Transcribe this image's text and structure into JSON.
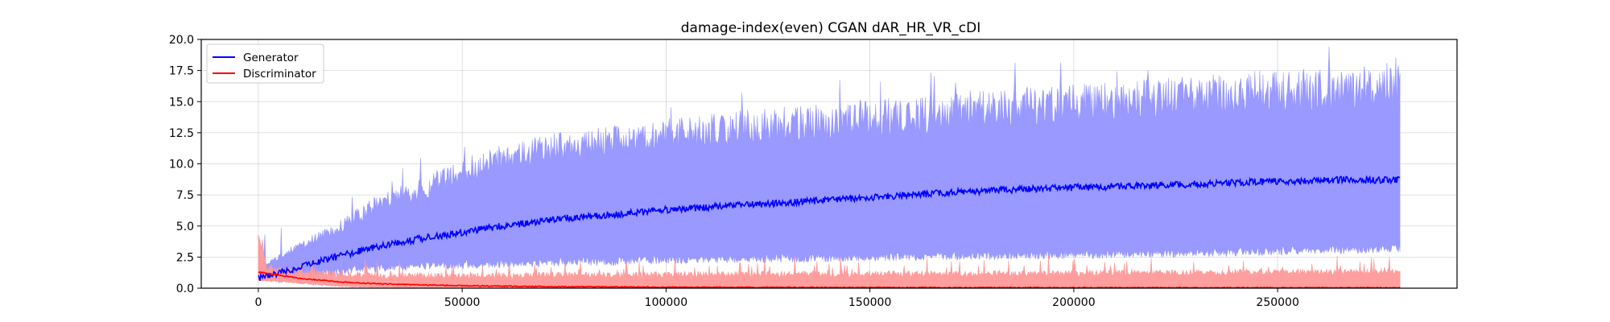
{
  "chart_data": {
    "type": "line",
    "title": "damage-index(even)   CGAN    dAR_HR_VR_cDI",
    "xlabel": "",
    "ylabel": "",
    "xlim": [
      -14000,
      294000
    ],
    "ylim": [
      0,
      20
    ],
    "grid": true,
    "legend_position": "top-left",
    "x_ticks": [
      0,
      50000,
      100000,
      150000,
      200000,
      250000
    ],
    "x_tick_labels": [
      "0",
      "50000",
      "100000",
      "150000",
      "200000",
      "250000"
    ],
    "y_ticks": [
      0,
      2.5,
      5,
      7.5,
      10,
      12.5,
      15,
      17.5,
      20
    ],
    "y_tick_labels": [
      "0.0",
      "2.5",
      "5.0",
      "7.5",
      "10.0",
      "12.5",
      "15.0",
      "17.5",
      "20.0"
    ],
    "series": [
      {
        "name": "Generator",
        "color": "#0000ff",
        "band_color": "#9999ff",
        "x": [
          0,
          5000,
          10000,
          20000,
          30000,
          40000,
          50000,
          60000,
          75000,
          90000,
          100000,
          125000,
          150000,
          175000,
          200000,
          225000,
          250000,
          265000,
          280000
        ],
        "mean": [
          0.8,
          1.2,
          1.7,
          2.6,
          3.4,
          4.0,
          4.5,
          5.0,
          5.6,
          6.0,
          6.3,
          6.8,
          7.3,
          7.8,
          8.1,
          8.3,
          8.6,
          8.7,
          8.7
        ],
        "band_upper": [
          1.5,
          2.5,
          3.5,
          5.0,
          7.0,
          8.0,
          9.5,
          10.5,
          11.5,
          12.0,
          12.5,
          13.2,
          13.8,
          14.5,
          15.0,
          15.5,
          16.0,
          16.2,
          16.3
        ],
        "band_lower": [
          0.9,
          0.7,
          1.0,
          1.4,
          1.6,
          1.8,
          1.9,
          2.0,
          2.1,
          2.2,
          2.3,
          2.4,
          2.5,
          2.6,
          2.7,
          2.8,
          3.0,
          3.1,
          3.2
        ]
      },
      {
        "name": "Discriminator",
        "color": "#ff0000",
        "band_color": "#ff9999",
        "x": [
          0,
          2000,
          5000,
          10000,
          20000,
          30000,
          50000,
          75000,
          100000,
          150000,
          200000,
          250000,
          280000
        ],
        "mean": [
          1.3,
          1.2,
          1.05,
          0.8,
          0.5,
          0.35,
          0.2,
          0.12,
          0.08,
          0.05,
          0.04,
          0.03,
          0.03
        ],
        "band_upper": [
          4.5,
          1.7,
          1.5,
          1.3,
          1.1,
          1.0,
          1.0,
          1.05,
          1.1,
          1.15,
          1.2,
          1.3,
          1.3
        ],
        "band_lower": [
          0.6,
          0.6,
          0.55,
          0.4,
          0.15,
          0.05,
          0.0,
          0.0,
          0.0,
          0.0,
          0.0,
          0.0,
          0.0
        ]
      }
    ]
  }
}
